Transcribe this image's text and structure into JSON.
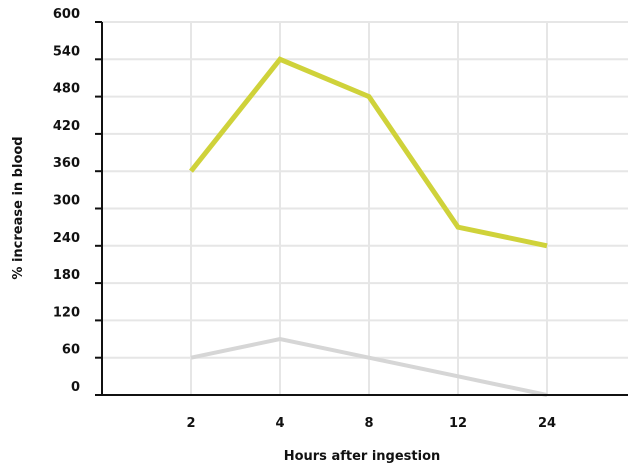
{
  "chart_data": {
    "type": "line",
    "title": "",
    "xlabel": "Hours after ingestion",
    "ylabel": "% increase in blood",
    "categories": [
      "2",
      "4",
      "8",
      "12",
      "24"
    ],
    "yticks": [
      "0",
      "60",
      "120",
      "180",
      "240",
      "300",
      "360",
      "420",
      "480",
      "540",
      "600"
    ],
    "ylim": [
      0,
      600
    ],
    "grid": true,
    "legend": "none",
    "series": [
      {
        "values": [
          360,
          540,
          480,
          270,
          240
        ],
        "color": "#cfd23a"
      },
      {
        "values": [
          60,
          90,
          60,
          30,
          0
        ],
        "color": "#d6d6d6"
      }
    ]
  }
}
